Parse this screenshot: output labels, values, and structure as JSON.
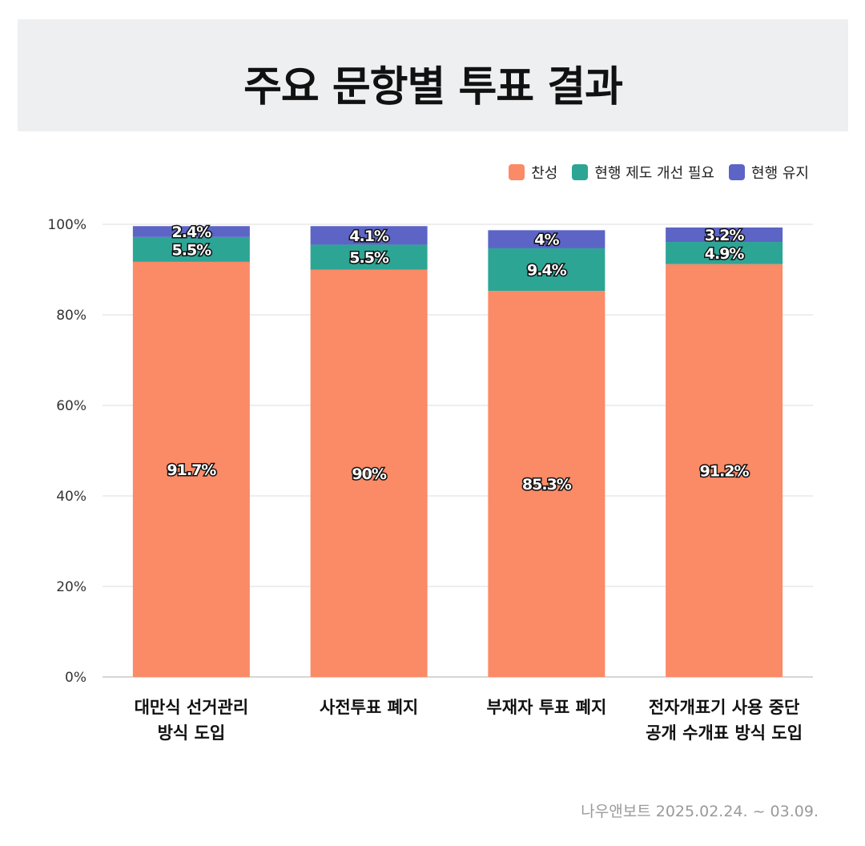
{
  "title": "주요 문항별 투표 결과",
  "source": "나우앤보트 2025.02.24. ~ 03.09.",
  "chart_data": {
    "type": "bar",
    "stacked": true,
    "ylim": [
      0,
      100
    ],
    "yticks": [
      "0%",
      "20%",
      "40%",
      "60%",
      "80%",
      "100%"
    ],
    "grid": true,
    "legend_position": "top-right",
    "categories": [
      [
        "대만식 선거관리",
        "방식 도입"
      ],
      [
        "사전투표 폐지"
      ],
      [
        "부재자 투표 폐지"
      ],
      [
        "전자개표기 사용 중단",
        "공개 수개표 방식 도입"
      ]
    ],
    "series": [
      {
        "name": "찬성",
        "color": "#fb8a66",
        "values": [
          91.7,
          90,
          85.3,
          91.2
        ],
        "labels": [
          "91.7%",
          "90%",
          "85.3%",
          "91.2%"
        ]
      },
      {
        "name": "현행 제도 개선 필요",
        "color": "#2da595",
        "values": [
          5.5,
          5.5,
          9.4,
          4.9
        ],
        "labels": [
          "5.5%",
          "5.5%",
          "9.4%",
          "4.9%"
        ]
      },
      {
        "name": "현행 유지",
        "color": "#5c64c6",
        "values": [
          2.4,
          4.1,
          4,
          3.2
        ],
        "labels": [
          "2.4%",
          "4.1%",
          "4%",
          "3.2%"
        ]
      }
    ]
  }
}
